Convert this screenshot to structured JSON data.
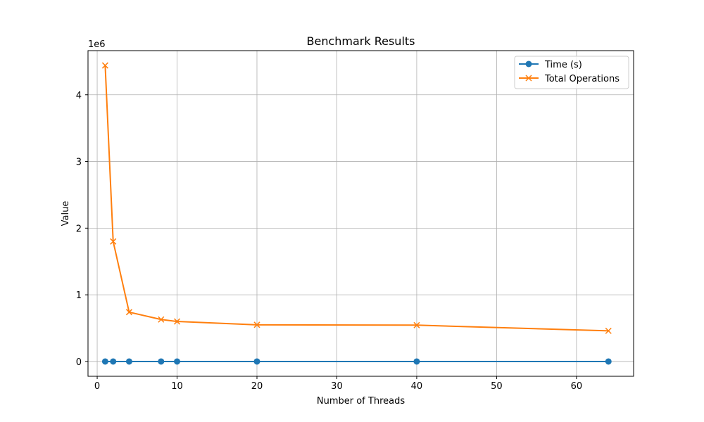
{
  "chart_data": {
    "type": "line",
    "title": "Benchmark Results",
    "xlabel": "Number of Threads",
    "ylabel": "Value",
    "y_offset_label": "1e6",
    "x": [
      1,
      2,
      4,
      8,
      10,
      20,
      40,
      64
    ],
    "series": [
      {
        "name": "Time (s)",
        "color": "#1f77b4",
        "marker": "circle",
        "values": [
          10,
          12,
          15,
          18,
          20,
          25,
          30,
          35
        ]
      },
      {
        "name": "Total Operations",
        "color": "#ff7f0e",
        "marker": "x",
        "values": [
          4440000,
          1800000,
          740000,
          630000,
          600000,
          550000,
          545000,
          460000
        ]
      }
    ],
    "xlim": [
      -1.15,
      67.15
    ],
    "ylim": [
      -222000,
      4662000
    ],
    "xticks": [
      0,
      10,
      20,
      30,
      40,
      50,
      60
    ],
    "xtick_labels": [
      "0",
      "10",
      "20",
      "30",
      "40",
      "50",
      "60"
    ],
    "yticks": [
      0,
      1000000,
      2000000,
      3000000,
      4000000
    ],
    "ytick_labels": [
      "0",
      "1",
      "2",
      "3",
      "4"
    ],
    "grid": true,
    "legend_position": "top-right"
  }
}
